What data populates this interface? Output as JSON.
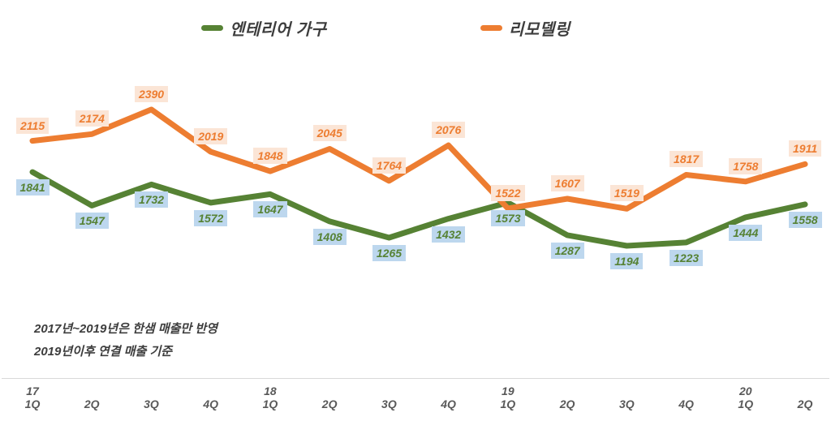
{
  "chart_data": {
    "type": "line",
    "title": "",
    "categories": [
      "17 1Q",
      "2Q",
      "3Q",
      "4Q",
      "18 1Q",
      "2Q",
      "3Q",
      "4Q",
      "19 1Q",
      "2Q",
      "3Q",
      "4Q",
      "20 1Q",
      "2Q"
    ],
    "x_labels": [
      {
        "year": "17",
        "quarter": "1Q"
      },
      {
        "quarter": "2Q"
      },
      {
        "quarter": "3Q"
      },
      {
        "quarter": "4Q"
      },
      {
        "year": "18",
        "quarter": "1Q"
      },
      {
        "quarter": "2Q"
      },
      {
        "quarter": "3Q"
      },
      {
        "quarter": "4Q"
      },
      {
        "year": "19",
        "quarter": "1Q"
      },
      {
        "quarter": "2Q"
      },
      {
        "quarter": "3Q"
      },
      {
        "quarter": "4Q"
      },
      {
        "year": "20",
        "quarter": "1Q"
      },
      {
        "quarter": "2Q"
      }
    ],
    "series": [
      {
        "name": "엔테리어 가구",
        "color": "#568234",
        "label_bg": "#bdd7ee",
        "label_position": "below",
        "values": [
          1841,
          1547,
          1732,
          1572,
          1647,
          1408,
          1265,
          1432,
          1573,
          1287,
          1194,
          1223,
          1444,
          1558
        ]
      },
      {
        "name": "리모델링",
        "color": "#ed7d31",
        "label_bg": "#fbe5d6",
        "label_position": "above",
        "values": [
          2115,
          2174,
          2390,
          2019,
          1848,
          2045,
          1764,
          2076,
          1522,
          1607,
          1519,
          1817,
          1758,
          1911
        ]
      }
    ],
    "annotations": [
      "2017년~2019년은 한샘 매출만 반영",
      "2019년이후 연결 매출 기준"
    ],
    "legend_position": "top",
    "grid": false,
    "data_labels": true,
    "axis_line_color": "#d9d9d9",
    "axis_text_color": "#595959"
  }
}
